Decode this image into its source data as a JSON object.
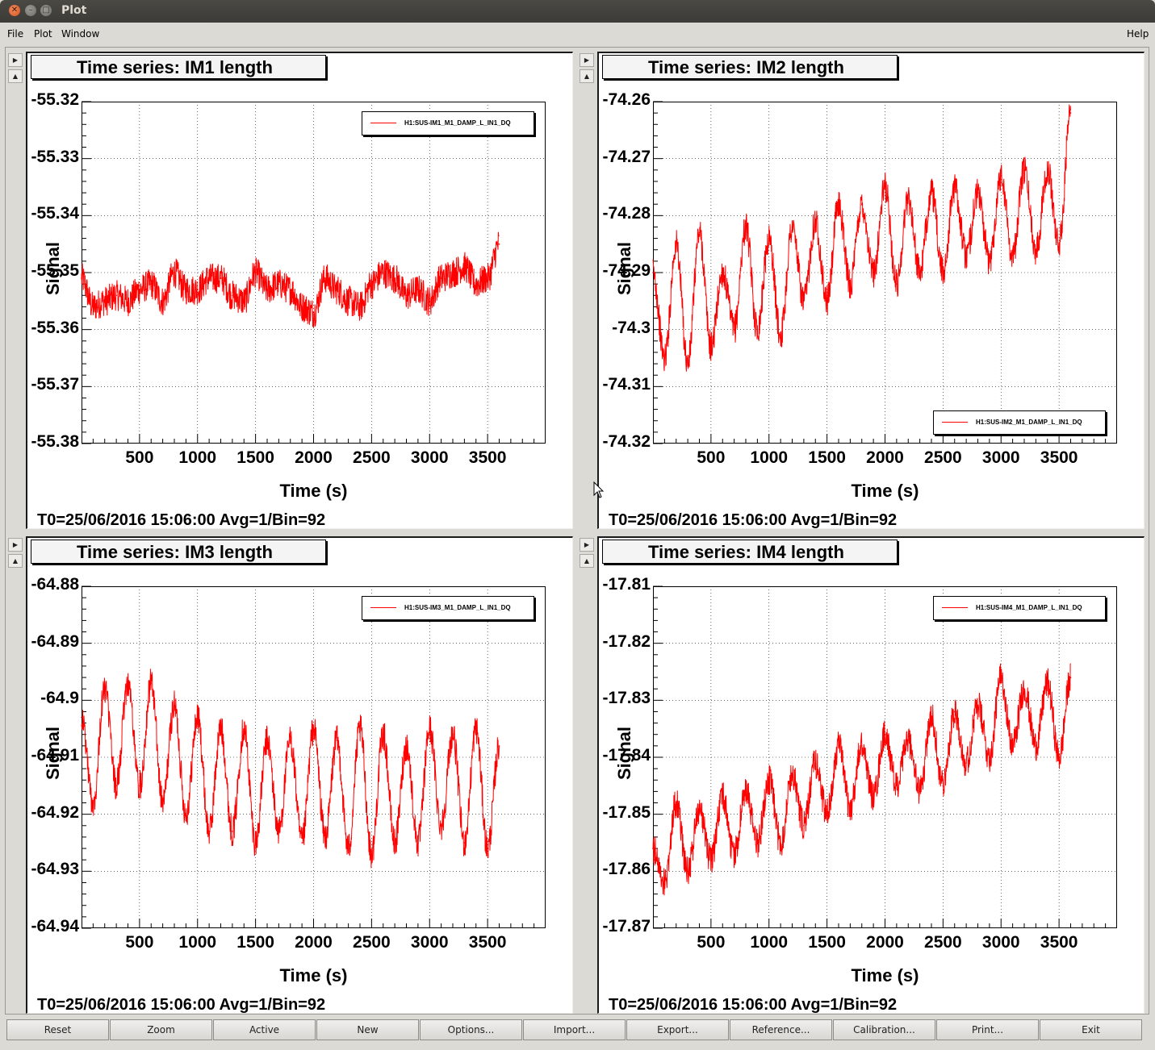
{
  "window": {
    "title": "Plot"
  },
  "menu": {
    "file": "File",
    "plot": "Plot",
    "window": "Window",
    "help": "Help"
  },
  "pads": [
    {
      "title": "Time series: IM1 length",
      "legend": "H1:SUS-IM1_M1_DAMP_L_IN1_DQ",
      "legend_position": "top-right",
      "xlabel": "Time (s)",
      "ylabel": "Signal",
      "yticks": [
        "-55.32",
        "-55.33",
        "-55.34",
        "-55.35",
        "-55.36",
        "-55.37",
        "-55.38"
      ],
      "xticks": [
        "500",
        "1000",
        "1500",
        "2000",
        "2500",
        "3000",
        "3500"
      ],
      "footer": "T0=25/06/2016 15:06:00  Avg=1/Bin=92"
    },
    {
      "title": "Time series: IM2 length",
      "legend": "H1:SUS-IM2_M1_DAMP_L_IN1_DQ",
      "legend_position": "bottom-right",
      "xlabel": "Time (s)",
      "ylabel": "Signal",
      "yticks": [
        "-74.26",
        "-74.27",
        "-74.28",
        "-74.29",
        "-74.3",
        "-74.31",
        "-74.32"
      ],
      "xticks": [
        "500",
        "1000",
        "1500",
        "2000",
        "2500",
        "3000",
        "3500"
      ],
      "footer": "T0=25/06/2016 15:06:00  Avg=1/Bin=92"
    },
    {
      "title": "Time series: IM3 length",
      "legend": "H1:SUS-IM3_M1_DAMP_L_IN1_DQ",
      "legend_position": "top-right",
      "xlabel": "Time (s)",
      "ylabel": "Signal",
      "yticks": [
        "-64.88",
        "-64.89",
        "-64.9",
        "-64.91",
        "-64.92",
        "-64.93",
        "-64.94"
      ],
      "xticks": [
        "500",
        "1000",
        "1500",
        "2000",
        "2500",
        "3000",
        "3500"
      ],
      "footer": "T0=25/06/2016 15:06:00  Avg=1/Bin=92"
    },
    {
      "title": "Time series: IM4 length",
      "legend": "H1:SUS-IM4_M1_DAMP_L_IN1_DQ",
      "legend_position": "top-right",
      "xlabel": "Time (s)",
      "ylabel": "Signal",
      "yticks": [
        "-17.81",
        "-17.82",
        "-17.83",
        "-17.84",
        "-17.85",
        "-17.86",
        "-17.87"
      ],
      "xticks": [
        "500",
        "1000",
        "1500",
        "2000",
        "2500",
        "3000",
        "3500"
      ],
      "footer": "T0=25/06/2016 15:06:00  Avg=1/Bin=92"
    }
  ],
  "buttons": [
    "Reset",
    "Zoom",
    "Active",
    "New",
    "Options...",
    "Import...",
    "Export...",
    "Reference...",
    "Calibration...",
    "Print...",
    "Exit"
  ],
  "colors": {
    "trace": "#ff0000",
    "grid": "#000000",
    "background": "#ffffff"
  },
  "chart_data": [
    {
      "type": "line",
      "title": "Time series: IM1 length",
      "xlabel": "Time (s)",
      "ylabel": "Signal",
      "xlim": [
        0,
        4000
      ],
      "ylim": [
        -55.38,
        -55.32
      ],
      "grid": true,
      "legend": "top-right",
      "series": [
        {
          "name": "H1:SUS-IM1_M1_DAMP_L_IN1_DQ",
          "x": [
            0,
            100,
            200,
            300,
            400,
            500,
            600,
            700,
            800,
            900,
            1000,
            1100,
            1200,
            1300,
            1400,
            1500,
            1600,
            1700,
            1800,
            1900,
            2000,
            2100,
            2200,
            2300,
            2400,
            2500,
            2600,
            2700,
            2800,
            2900,
            3000,
            3100,
            3200,
            3300,
            3400,
            3500,
            3600
          ],
          "y": [
            -55.351,
            -55.356,
            -55.355,
            -55.354,
            -55.355,
            -55.353,
            -55.352,
            -55.355,
            -55.35,
            -55.353,
            -55.353,
            -55.351,
            -55.351,
            -55.354,
            -55.355,
            -55.35,
            -55.353,
            -55.352,
            -55.353,
            -55.356,
            -55.357,
            -55.351,
            -55.353,
            -55.355,
            -55.356,
            -55.352,
            -55.35,
            -55.351,
            -55.354,
            -55.353,
            -55.355,
            -55.351,
            -55.35,
            -55.349,
            -55.352,
            -55.351,
            -55.345
          ]
        }
      ]
    },
    {
      "type": "line",
      "title": "Time series: IM2 length",
      "xlabel": "Time (s)",
      "ylabel": "Signal",
      "xlim": [
        0,
        4000
      ],
      "ylim": [
        -74.32,
        -74.26
      ],
      "grid": true,
      "legend": "bottom-right",
      "series": [
        {
          "name": "H1:SUS-IM2_M1_DAMP_L_IN1_DQ",
          "x": [
            0,
            100,
            200,
            300,
            400,
            500,
            600,
            700,
            800,
            900,
            1000,
            1100,
            1200,
            1300,
            1400,
            1500,
            1600,
            1700,
            1800,
            1900,
            2000,
            2100,
            2200,
            2300,
            2400,
            2500,
            2600,
            2700,
            2800,
            2900,
            3000,
            3100,
            3200,
            3300,
            3400,
            3500,
            3600
          ],
          "y": [
            -74.29,
            -74.305,
            -74.285,
            -74.306,
            -74.283,
            -74.303,
            -74.29,
            -74.3,
            -74.282,
            -74.3,
            -74.284,
            -74.301,
            -74.282,
            -74.295,
            -74.281,
            -74.295,
            -74.278,
            -74.292,
            -74.278,
            -74.29,
            -74.275,
            -74.292,
            -74.277,
            -74.29,
            -74.276,
            -74.29,
            -74.275,
            -74.287,
            -74.276,
            -74.288,
            -74.273,
            -74.287,
            -74.272,
            -74.286,
            -74.272,
            -74.285,
            -74.262
          ]
        }
      ]
    },
    {
      "type": "line",
      "title": "Time series: IM3 length",
      "xlabel": "Time (s)",
      "ylabel": "Signal",
      "xlim": [
        0,
        4000
      ],
      "ylim": [
        -64.94,
        -64.88
      ],
      "grid": true,
      "legend": "top-right",
      "series": [
        {
          "name": "H1:SUS-IM3_M1_DAMP_L_IN1_DQ",
          "x": [
            0,
            100,
            200,
            300,
            400,
            500,
            600,
            700,
            800,
            900,
            1000,
            1100,
            1200,
            1300,
            1400,
            1500,
            1600,
            1700,
            1800,
            1900,
            2000,
            2100,
            2200,
            2300,
            2400,
            2500,
            2600,
            2700,
            2800,
            2900,
            3000,
            3100,
            3200,
            3300,
            3400,
            3500,
            3600
          ],
          "y": [
            -64.903,
            -64.918,
            -64.898,
            -64.915,
            -64.897,
            -64.915,
            -64.897,
            -64.918,
            -64.901,
            -64.92,
            -64.903,
            -64.923,
            -64.905,
            -64.923,
            -64.905,
            -64.925,
            -64.907,
            -64.923,
            -64.907,
            -64.925,
            -64.905,
            -64.924,
            -64.907,
            -64.926,
            -64.905,
            -64.927,
            -64.906,
            -64.925,
            -64.908,
            -64.925,
            -64.905,
            -64.922,
            -64.906,
            -64.925,
            -64.905,
            -64.926,
            -64.908
          ]
        }
      ]
    },
    {
      "type": "line",
      "title": "Time series: IM4 length",
      "xlabel": "Time (s)",
      "ylabel": "Signal",
      "xlim": [
        0,
        4000
      ],
      "ylim": [
        -17.87,
        -17.81
      ],
      "grid": true,
      "legend": "top-right",
      "series": [
        {
          "name": "H1:SUS-IM4_M1_DAMP_L_IN1_DQ",
          "x": [
            0,
            100,
            200,
            300,
            400,
            500,
            600,
            700,
            800,
            900,
            1000,
            1100,
            1200,
            1300,
            1400,
            1500,
            1600,
            1700,
            1800,
            1900,
            2000,
            2100,
            2200,
            2300,
            2400,
            2500,
            2600,
            2700,
            2800,
            2900,
            3000,
            3100,
            3200,
            3300,
            3400,
            3500,
            3600
          ],
          "y": [
            -17.856,
            -17.862,
            -17.848,
            -17.86,
            -17.849,
            -17.858,
            -17.847,
            -17.857,
            -17.846,
            -17.855,
            -17.844,
            -17.855,
            -17.843,
            -17.852,
            -17.841,
            -17.85,
            -17.838,
            -17.849,
            -17.838,
            -17.847,
            -17.836,
            -17.845,
            -17.837,
            -17.846,
            -17.833,
            -17.845,
            -17.832,
            -17.841,
            -17.831,
            -17.84,
            -17.826,
            -17.838,
            -17.828,
            -17.838,
            -17.827,
            -17.84,
            -17.826
          ]
        }
      ]
    }
  ]
}
